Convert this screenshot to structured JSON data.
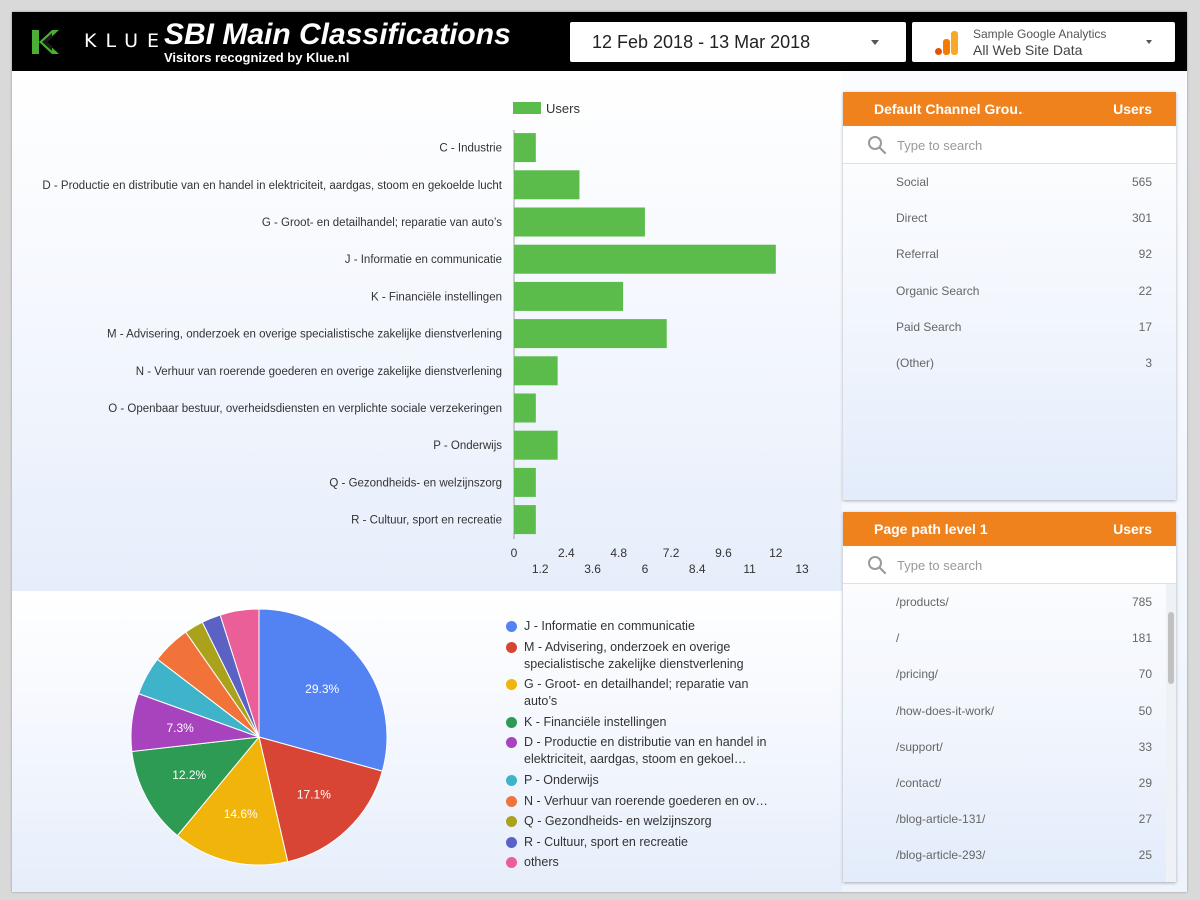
{
  "header": {
    "logo_text": "KLUE",
    "title": "SBI Main Classifications",
    "subtitle": "Visitors recognized by Klue.nl",
    "date_range": "12 Feb 2018 - 13 Mar 2018",
    "data_source_line1": "Sample Google Analytics",
    "data_source_line2": "All Web Site Data"
  },
  "colors": {
    "header_bg": "#000000",
    "bar_green": "#5bbb4b",
    "panel_orange": "#f0821e",
    "logo_green": "#4caf35"
  },
  "chart_data": [
    {
      "type": "bar",
      "orientation": "horizontal",
      "legend": "top",
      "categories": [
        "C - Industrie",
        "D - Productie en distributie van en handel in elektriciteit, aardgas, stoom en gekoelde lucht",
        "G - Groot- en detailhandel; reparatie van auto’s",
        "J - Informatie en communicatie",
        "K - Financiële instellingen",
        "M - Advisering, onderzoek en overige specialistische zakelijke dienstverlening",
        "N - Verhuur van roerende goederen en overige zakelijke dienstverlening",
        "O - Openbaar bestuur, overheidsdiensten en verplichte sociale verzekeringen",
        "P - Onderwijs",
        "Q - Gezondheids- en welzijnszorg",
        "R - Cultuur, sport en recreatie"
      ],
      "series": [
        {
          "name": "Users",
          "values": [
            1,
            3,
            6,
            12,
            5,
            7,
            2,
            1,
            2,
            1,
            1
          ]
        }
      ],
      "xlim": [
        0,
        13
      ],
      "xticks": [
        "0",
        "1.2",
        "2.4",
        "3.6",
        "4.8",
        "6",
        "7.2",
        "8.4",
        "9.6",
        "11",
        "12",
        "13"
      ],
      "xtick_values": [
        0,
        1.2,
        2.4,
        3.6,
        4.8,
        6,
        7.2,
        8.4,
        9.6,
        10.8,
        12,
        13.2
      ]
    },
    {
      "type": "pie",
      "legend": "right",
      "slices": [
        {
          "name": "J - Informatie en communicatie",
          "value": 29.3,
          "label": "29.3%",
          "color": "#5382f2"
        },
        {
          "name": "M - Advisering, onderzoek en overige specialistische zakelijke dienstverlening",
          "value": 17.1,
          "label": "17.1%",
          "color": "#d94535"
        },
        {
          "name": "G - Groot- en detailhandel; reparatie van auto’s",
          "value": 14.6,
          "label": "14.6%",
          "color": "#f0b40a"
        },
        {
          "name": "K - Financiële instellingen",
          "value": 12.2,
          "label": "12.2%",
          "color": "#2e9b54"
        },
        {
          "name": "D - Productie en distributie van en handel in elektriciteit, aardgas, stoom en gekoel…",
          "value": 7.3,
          "label": "7.3%",
          "color": "#a643bd"
        },
        {
          "name": "P - Onderwijs",
          "value": 4.9,
          "label": "",
          "color": "#3fb3c9"
        },
        {
          "name": "N - Verhuur van roerende goederen en ov…",
          "value": 4.9,
          "label": "",
          "color": "#f2733a"
        },
        {
          "name": "Q - Gezondheids- en welzijnszorg",
          "value": 2.4,
          "label": "",
          "color": "#a9a21a"
        },
        {
          "name": "R - Cultuur, sport en recreatie",
          "value": 2.4,
          "label": "",
          "color": "#5b62c4"
        },
        {
          "name": "others",
          "value": 4.9,
          "label": "",
          "color": "#ea5f98"
        }
      ]
    }
  ],
  "channel_table": {
    "dimension": "Default Channel Grou…",
    "metric": "Users",
    "search_placeholder": "Type to search",
    "rows": [
      {
        "key": "Social",
        "value": "565"
      },
      {
        "key": "Direct",
        "value": "301"
      },
      {
        "key": "Referral",
        "value": "92"
      },
      {
        "key": "Organic Search",
        "value": "22"
      },
      {
        "key": "Paid Search",
        "value": "17"
      },
      {
        "key": "(Other)",
        "value": "3"
      }
    ]
  },
  "page_table": {
    "dimension": "Page path level 1",
    "metric": "Users",
    "search_placeholder": "Type to search",
    "rows": [
      {
        "key": "/products/",
        "value": "785"
      },
      {
        "key": "/",
        "value": "181"
      },
      {
        "key": "/pricing/",
        "value": "70"
      },
      {
        "key": "/how-does-it-work/",
        "value": "50"
      },
      {
        "key": "/support/",
        "value": "33"
      },
      {
        "key": "/contact/",
        "value": "29"
      },
      {
        "key": "/blog-article-131/",
        "value": "27"
      },
      {
        "key": "/blog-article-293/",
        "value": "25"
      }
    ]
  }
}
